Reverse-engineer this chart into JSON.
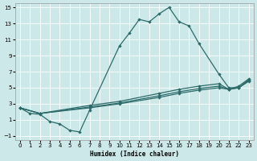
{
  "background_color": "#cde8e8",
  "grid_color": "#b0d8d8",
  "line_color": "#2d6b6b",
  "xlabel": "Humidex (Indice chaleur)",
  "xlim": [
    -0.5,
    23.5
  ],
  "ylim": [
    -1.5,
    15.5
  ],
  "xticks": [
    0,
    1,
    2,
    3,
    4,
    5,
    6,
    7,
    8,
    9,
    10,
    11,
    12,
    13,
    14,
    15,
    16,
    17,
    18,
    19,
    20,
    21,
    22,
    23
  ],
  "yticks": [
    -1,
    1,
    3,
    5,
    7,
    9,
    11,
    13,
    15
  ],
  "line1_x": [
    0,
    1,
    2,
    3,
    4,
    5,
    6,
    7,
    10,
    11,
    12,
    13,
    14,
    15,
    16,
    17,
    18,
    20,
    21,
    22,
    23
  ],
  "line1_y": [
    2.5,
    1.8,
    1.7,
    0.8,
    0.5,
    -0.3,
    -0.5,
    2.2,
    10.2,
    11.8,
    13.5,
    13.2,
    14.2,
    15.0,
    13.2,
    12.7,
    10.5,
    6.7,
    5.0,
    5.0,
    6.0
  ],
  "line2_x": [
    0,
    2,
    7,
    10,
    14,
    16,
    18,
    20,
    21,
    22,
    23
  ],
  "line2_y": [
    2.5,
    1.8,
    2.8,
    3.3,
    4.3,
    4.8,
    5.2,
    5.5,
    4.8,
    5.2,
    6.1
  ],
  "line3_x": [
    0,
    2,
    7,
    10,
    14,
    16,
    18,
    20,
    21,
    22,
    23
  ],
  "line3_y": [
    2.5,
    1.8,
    2.6,
    3.1,
    4.0,
    4.5,
    4.9,
    5.2,
    4.8,
    5.0,
    5.9
  ],
  "line4_x": [
    0,
    2,
    7,
    10,
    14,
    16,
    18,
    20,
    21,
    22,
    23
  ],
  "line4_y": [
    2.5,
    1.8,
    2.5,
    3.0,
    3.8,
    4.3,
    4.7,
    5.0,
    4.8,
    5.0,
    5.8
  ]
}
